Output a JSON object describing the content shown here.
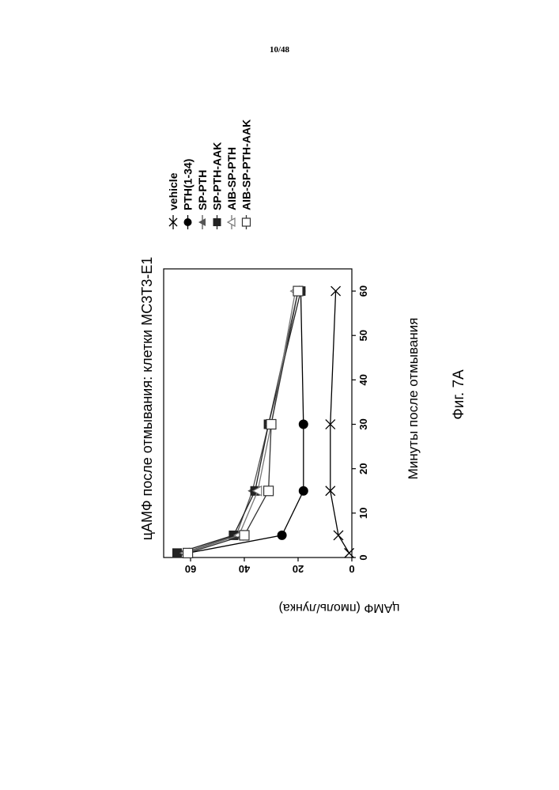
{
  "page": {
    "number": "10/48",
    "figure_caption": "Фиг. 7A"
  },
  "chart_data": {
    "type": "line",
    "title": "цАМФ после отмывания: клетки MC3T3-E1",
    "xlabel": "Минуты после отмывания",
    "ylabel": "цАМФ (пмоль/лунка)",
    "xlim": [
      0,
      65
    ],
    "ylim": [
      0,
      70
    ],
    "xticks": [
      0,
      10,
      20,
      30,
      40,
      50,
      60
    ],
    "yticks": [
      0,
      20,
      40,
      60
    ],
    "grid": false,
    "legend_position": "right",
    "x": [
      1,
      5,
      15,
      30,
      60
    ],
    "series": [
      {
        "name": "vehicle",
        "marker": "x",
        "color": "#000000",
        "values": [
          1,
          5,
          8,
          8,
          6
        ]
      },
      {
        "name": "PTH(1-34)",
        "marker": "circle",
        "color": "#000000",
        "values": [
          61,
          26,
          18,
          18,
          19
        ]
      },
      {
        "name": "SP-PTH",
        "marker": "triangle",
        "color": "#555555",
        "values": [
          63,
          43,
          37,
          31,
          20
        ]
      },
      {
        "name": "SP-PTH-AAK",
        "marker": "square-filled",
        "color": "#222222",
        "values": [
          65,
          44,
          36,
          31,
          19
        ]
      },
      {
        "name": "AIB-SP-PTH",
        "marker": "triangle-open",
        "color": "#777777",
        "values": [
          62,
          42,
          35,
          30,
          21
        ]
      },
      {
        "name": "AIB-SP-PTH-AAK",
        "marker": "square-open",
        "color": "#333333",
        "values": [
          61,
          40,
          31,
          30,
          20
        ]
      }
    ]
  }
}
